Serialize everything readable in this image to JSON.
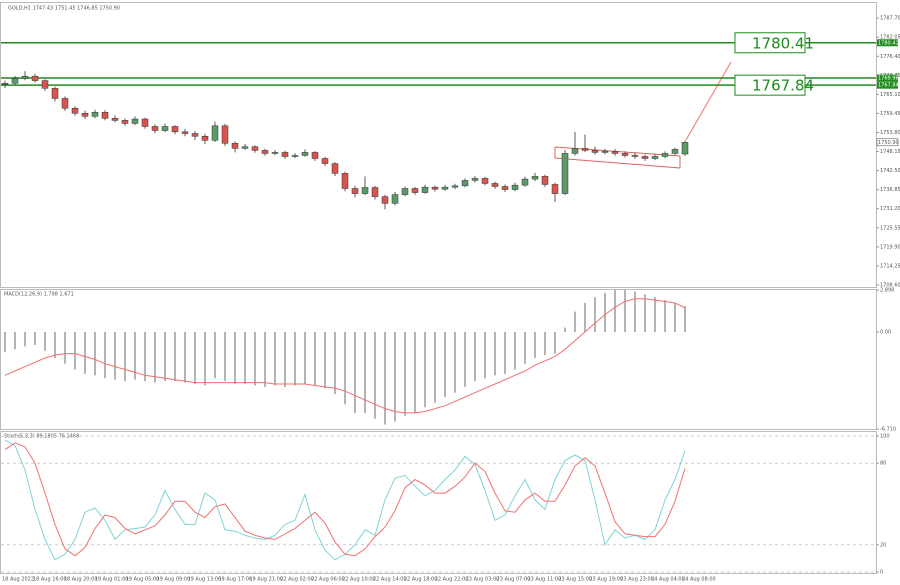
{
  "chart_data": {
    "type": "candlestick",
    "title": "GOLD,H1  1747.43 1751.45 1746.85 1750.90",
    "up_color": "#5b9a68",
    "down_color": "#d9534f",
    "ylim": [
      1708.0,
      1792.2
    ],
    "yticks": [
      {
        "value": 1787.7,
        "label": "1787.70"
      },
      1782.05,
      {
        "value": 1776.4,
        "label": "1776.40"
      },
      1770.75,
      {
        "value": 1765.1,
        "label": "1765.10"
      },
      1759.45,
      {
        "value": 1753.8,
        "label": "1753.80"
      },
      1748.15,
      {
        "value": 1742.5,
        "label": "1742.50"
      },
      1736.85,
      {
        "value": 1731.2,
        "label": "1731.20"
      },
      1725.55,
      {
        "value": 1719.9,
        "label": "1719.90"
      },
      1714.25,
      {
        "value": 1708.6,
        "label": "1708.60"
      }
    ],
    "levels": [
      1780.41,
      1769.96,
      1767.84
    ],
    "level_color": "#1e8c1e",
    "last_price": {
      "value": 1750.9,
      "label": "1750.90"
    },
    "ohlc": [
      [
        1768.0,
        1769.2,
        1767.0,
        1768.4
      ],
      [
        1768.4,
        1770.6,
        1768.0,
        1769.8
      ],
      [
        1769.8,
        1772.0,
        1769.3,
        1770.5
      ],
      [
        1770.5,
        1771.2,
        1768.6,
        1769.2
      ],
      [
        1769.2,
        1769.6,
        1766.1,
        1766.9
      ],
      [
        1766.9,
        1767.4,
        1763.0,
        1763.9
      ],
      [
        1763.9,
        1764.5,
        1760.2,
        1761.0
      ],
      [
        1761.0,
        1761.6,
        1758.8,
        1759.5
      ],
      [
        1759.5,
        1760.3,
        1757.8,
        1758.6
      ],
      [
        1758.6,
        1760.6,
        1758.0,
        1759.8
      ],
      [
        1759.8,
        1760.4,
        1757.4,
        1758.0
      ],
      [
        1758.0,
        1758.8,
        1756.8,
        1757.4
      ],
      [
        1757.4,
        1758.0,
        1755.8,
        1756.5
      ],
      [
        1756.5,
        1758.6,
        1756.0,
        1757.8
      ],
      [
        1757.8,
        1758.2,
        1754.9,
        1755.6
      ],
      [
        1755.6,
        1756.2,
        1753.6,
        1754.4
      ],
      [
        1754.4,
        1756.4,
        1753.9,
        1755.6
      ],
      [
        1755.6,
        1756.0,
        1753.3,
        1754.0
      ],
      [
        1754.0,
        1754.8,
        1752.7,
        1753.5
      ],
      [
        1753.5,
        1754.2,
        1751.6,
        1752.7
      ],
      [
        1752.7,
        1753.4,
        1750.4,
        1751.5
      ],
      [
        1751.5,
        1757.0,
        1751.0,
        1755.8
      ],
      [
        1755.8,
        1756.4,
        1749.8,
        1750.6
      ],
      [
        1750.6,
        1751.2,
        1747.9,
        1749.1
      ],
      [
        1749.1,
        1750.4,
        1748.6,
        1749.6
      ],
      [
        1749.6,
        1750.0,
        1747.8,
        1748.5
      ],
      [
        1748.5,
        1749.0,
        1746.9,
        1747.6
      ],
      [
        1747.6,
        1748.6,
        1747.1,
        1747.9
      ],
      [
        1747.9,
        1748.4,
        1746.0,
        1746.7
      ],
      [
        1746.7,
        1747.7,
        1746.2,
        1747.0
      ],
      [
        1747.0,
        1748.8,
        1746.6,
        1747.9
      ],
      [
        1747.9,
        1748.3,
        1745.4,
        1746.1
      ],
      [
        1746.1,
        1746.6,
        1743.8,
        1744.6
      ],
      [
        1744.6,
        1745.0,
        1740.9,
        1741.7
      ],
      [
        1741.7,
        1742.2,
        1736.4,
        1737.2
      ],
      [
        1737.2,
        1738.0,
        1734.6,
        1735.7
      ],
      [
        1735.7,
        1740.8,
        1735.2,
        1737.5
      ],
      [
        1737.5,
        1738.0,
        1733.9,
        1734.8
      ],
      [
        1734.8,
        1735.4,
        1731.0,
        1732.8
      ],
      [
        1732.8,
        1736.2,
        1732.2,
        1735.4
      ],
      [
        1735.4,
        1737.8,
        1734.9,
        1737.2
      ],
      [
        1737.2,
        1737.7,
        1735.3,
        1736.0
      ],
      [
        1736.0,
        1738.3,
        1735.6,
        1737.6
      ],
      [
        1737.6,
        1738.1,
        1736.3,
        1737.0
      ],
      [
        1737.0,
        1738.3,
        1736.5,
        1737.6
      ],
      [
        1737.6,
        1738.6,
        1737.0,
        1738.0
      ],
      [
        1738.0,
        1740.2,
        1737.5,
        1739.6
      ],
      [
        1739.6,
        1740.9,
        1739.0,
        1740.2
      ],
      [
        1740.2,
        1740.7,
        1738.1,
        1738.7
      ],
      [
        1738.7,
        1739.2,
        1737.1,
        1737.8
      ],
      [
        1737.8,
        1738.4,
        1736.2,
        1736.9
      ],
      [
        1736.9,
        1738.9,
        1736.4,
        1738.2
      ],
      [
        1738.2,
        1740.7,
        1737.7,
        1740.0
      ],
      [
        1740.0,
        1741.8,
        1739.4,
        1740.8
      ],
      [
        1740.8,
        1741.3,
        1737.7,
        1738.4
      ],
      [
        1738.4,
        1739.0,
        1733.2,
        1735.7
      ],
      [
        1735.7,
        1748.6,
        1735.2,
        1747.6
      ],
      [
        1747.6,
        1754.0,
        1747.0,
        1749.1
      ],
      [
        1749.1,
        1753.2,
        1748.0,
        1748.5
      ],
      [
        1748.5,
        1749.6,
        1747.2,
        1747.9
      ],
      [
        1747.9,
        1749.0,
        1747.3,
        1748.2
      ],
      [
        1748.2,
        1748.9,
        1746.9,
        1747.6
      ],
      [
        1747.6,
        1748.2,
        1746.4,
        1747.0
      ],
      [
        1747.0,
        1747.9,
        1746.0,
        1746.7
      ],
      [
        1746.7,
        1747.3,
        1745.4,
        1746.1
      ],
      [
        1746.1,
        1747.4,
        1745.6,
        1746.7
      ],
      [
        1746.7,
        1748.2,
        1746.2,
        1747.6
      ],
      [
        1747.6,
        1749.3,
        1747.1,
        1748.8
      ],
      [
        1747.43,
        1751.45,
        1746.85,
        1750.9
      ]
    ],
    "x_labels": [
      "18 Aug 2022",
      "18 Aug 16:00",
      "18 Aug 20:00",
      "19 Aug 01:00",
      "19 Aug 05:00",
      "19 Aug 09:00",
      "19 Aug 13:00",
      "19 Aug 17:00",
      "19 Aug 21:00",
      "22 Aug 02:00",
      "22 Aug 06:00",
      "22 Aug 10:00",
      "22 Aug 14:00",
      "22 Aug 18:00",
      "22 Aug 22:00",
      "23 Aug 03:00",
      "23 Aug 07:00",
      "23 Aug 11:00",
      "23 Aug 15:00",
      "23 Aug 19:00",
      "23 Aug 23:00",
      "24 Aug 04:00",
      "24 Aug 08:00"
    ],
    "macd": {
      "title": "MACD(12,26,9) 1.798 1.671",
      "ylim": [
        -6.71,
        2.898
      ],
      "yticks": [
        2.898,
        {
          "value": 0,
          "label": "0.00"
        },
        {
          "value": -6.71,
          "label": "-6.710"
        }
      ],
      "series": [
        {
          "name": "MACD",
          "color": "#b4b4b4",
          "values": [
            -1.4,
            -1.2,
            -1.0,
            -0.9,
            -1.3,
            -1.8,
            -2.2,
            -2.6,
            -2.9,
            -3.0,
            -3.2,
            -3.3,
            -3.4,
            -3.3,
            -3.4,
            -3.5,
            -3.4,
            -3.4,
            -3.5,
            -3.6,
            -3.7,
            -3.2,
            -3.4,
            -3.6,
            -3.6,
            -3.7,
            -3.8,
            -3.7,
            -3.8,
            -3.7,
            -3.6,
            -3.7,
            -3.9,
            -4.3,
            -5.0,
            -5.6,
            -5.6,
            -6.0,
            -6.4,
            -6.2,
            -5.8,
            -5.6,
            -5.2,
            -4.9,
            -4.5,
            -4.2,
            -3.8,
            -3.4,
            -3.2,
            -3.0,
            -2.9,
            -2.6,
            -2.2,
            -1.8,
            -1.6,
            -1.5,
            0.3,
            1.4,
            2.0,
            2.4,
            2.7,
            2.9,
            2.9,
            2.8,
            2.6,
            2.4,
            2.2,
            2.0,
            1.798
          ]
        },
        {
          "name": "Signal",
          "color": "#f07070",
          "values": [
            -3.0,
            -2.7,
            -2.4,
            -2.1,
            -1.8,
            -1.6,
            -1.5,
            -1.5,
            -1.7,
            -1.9,
            -2.2,
            -2.4,
            -2.6,
            -2.8,
            -3.0,
            -3.1,
            -3.2,
            -3.3,
            -3.4,
            -3.5,
            -3.5,
            -3.5,
            -3.5,
            -3.5,
            -3.5,
            -3.5,
            -3.5,
            -3.6,
            -3.6,
            -3.6,
            -3.6,
            -3.7,
            -3.8,
            -3.9,
            -4.1,
            -4.4,
            -4.7,
            -5.0,
            -5.3,
            -5.5,
            -5.6,
            -5.6,
            -5.5,
            -5.3,
            -5.1,
            -4.8,
            -4.5,
            -4.2,
            -3.9,
            -3.6,
            -3.3,
            -3.0,
            -2.7,
            -2.3,
            -2.0,
            -1.7,
            -1.2,
            -0.6,
            0.0,
            0.6,
            1.2,
            1.7,
            2.1,
            2.3,
            2.3,
            2.2,
            2.1,
            2.0,
            1.671
          ]
        }
      ]
    },
    "stoch": {
      "title": "Stoch(5,3,3) 89.1805 76.1468",
      "ylim": [
        0,
        100
      ],
      "yticks": [
        100,
        80,
        20,
        0
      ],
      "series": [
        {
          "name": "Main",
          "color": "#7fd3d6",
          "values": [
            97,
            93,
            75,
            46,
            24,
            9,
            13,
            24,
            44,
            47,
            38,
            24,
            31,
            32,
            33,
            42,
            60,
            46,
            35,
            35,
            58,
            53,
            31,
            30,
            27,
            25,
            24,
            27,
            35,
            38,
            57,
            31,
            16,
            9,
            13,
            20,
            31,
            27,
            53,
            69,
            71,
            63,
            56,
            60,
            68,
            75,
            85,
            79,
            60,
            38,
            42,
            56,
            68,
            53,
            46,
            68,
            82,
            86,
            82,
            53,
            20,
            31,
            25,
            27,
            24,
            31,
            53,
            68,
            89.1805
          ]
        },
        {
          "name": "Signal",
          "color": "#f07070",
          "values": [
            90,
            95,
            92,
            80,
            58,
            35,
            17,
            12,
            18,
            32,
            42,
            40,
            32,
            28,
            31,
            34,
            42,
            52,
            52,
            44,
            40,
            48,
            50,
            40,
            30,
            27,
            25,
            24,
            28,
            32,
            38,
            44,
            36,
            22,
            13,
            12,
            17,
            26,
            33,
            45,
            62,
            68,
            64,
            58,
            58,
            63,
            70,
            80,
            74,
            58,
            45,
            44,
            53,
            58,
            52,
            52,
            64,
            78,
            84,
            78,
            58,
            37,
            28,
            27,
            26,
            26,
            35,
            52,
            76.1468
          ]
        }
      ]
    }
  }
}
